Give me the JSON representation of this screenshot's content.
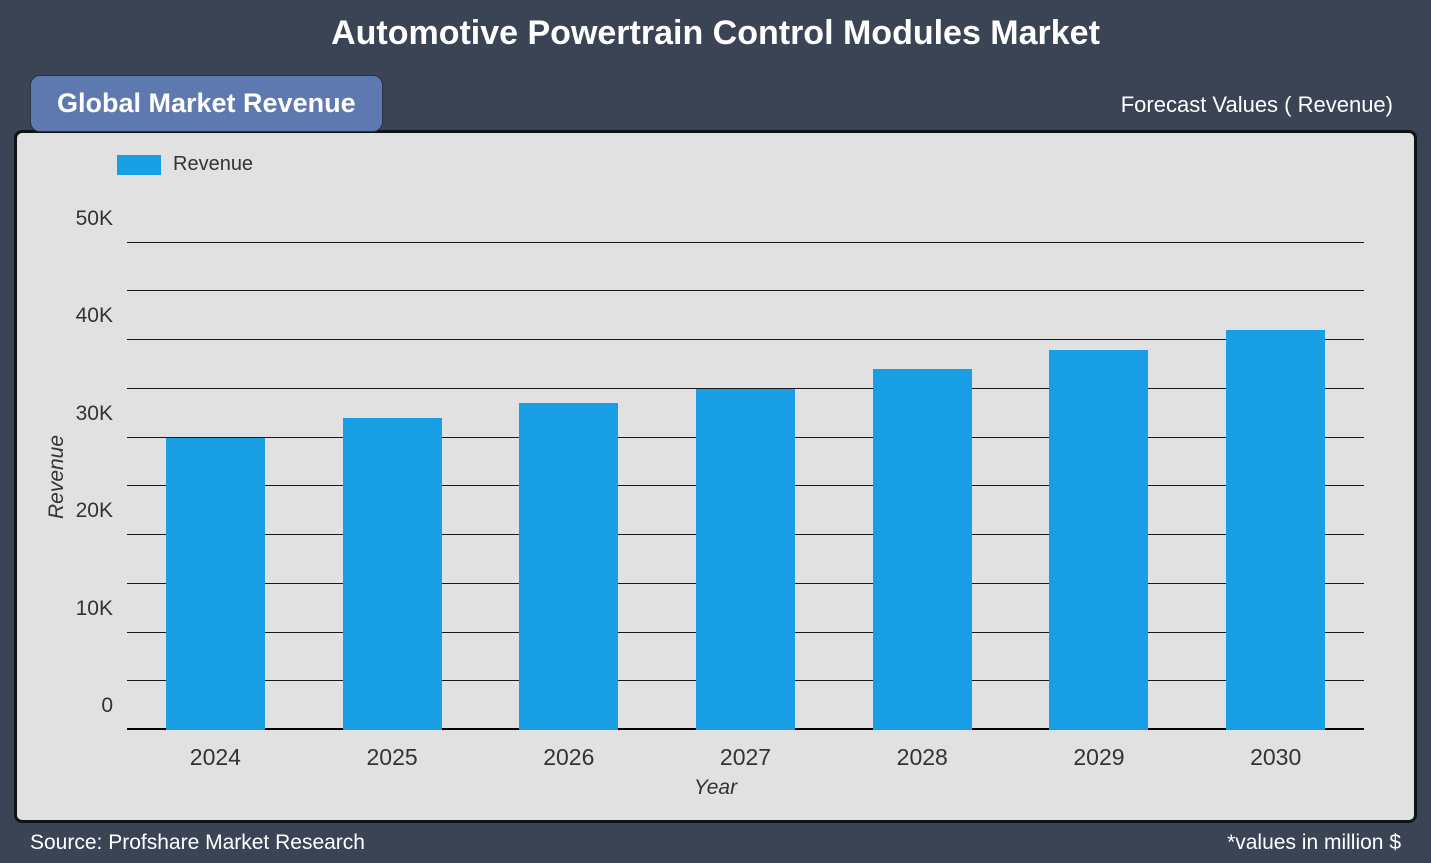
{
  "title": {
    "text": "Automotive Powertrain Control Modules Market",
    "fontsize": 34,
    "fontweight": 700,
    "color": "#ffffff"
  },
  "badge": {
    "text": "Global Market Revenue",
    "fontsize": 27,
    "fontweight": 700,
    "background_color": "#5d79b0",
    "text_color": "#ffffff",
    "border_radius": 10
  },
  "forecast_label": {
    "text": "Forecast Values ( Revenue)",
    "fontsize": 22,
    "color": "#ffffff"
  },
  "chart": {
    "type": "bar",
    "panel_background": "#e1e1e1",
    "panel_border_color": "#0f1419",
    "panel_border_width": 3,
    "panel_border_radius": 8,
    "legend": {
      "swatch_color": "#189ee4",
      "label": "Revenue",
      "label_fontsize": 20,
      "label_color": "#333333"
    },
    "categories": [
      "2024",
      "2025",
      "2026",
      "2027",
      "2028",
      "2029",
      "2030"
    ],
    "values": [
      30000,
      32000,
      33500,
      35000,
      37000,
      39000,
      41000
    ],
    "bar_colors": [
      "#189ee4",
      "#189ee4",
      "#189ee4",
      "#189ee4",
      "#189ee4",
      "#189ee4",
      "#189ee4"
    ],
    "bar_width_ratio": 0.56,
    "ylim": [
      0,
      52000
    ],
    "ytick_values": [
      0,
      10000,
      20000,
      30000,
      40000,
      50000
    ],
    "ytick_labels": [
      "0",
      "10K",
      "20K",
      "30K",
      "40K",
      "50K"
    ],
    "gridline_color": "#1a1a1a",
    "ylabel": "Revenue",
    "xlabel": "Year",
    "axis_label_fontsize": 21,
    "tick_fontsize": 21,
    "xtick_fontsize": 23
  },
  "footer": {
    "left": "Source: Profshare Market Research",
    "right": "*values in million $",
    "fontsize": 21,
    "color": "#ffffff"
  },
  "page": {
    "background_color": "#3a4455"
  }
}
